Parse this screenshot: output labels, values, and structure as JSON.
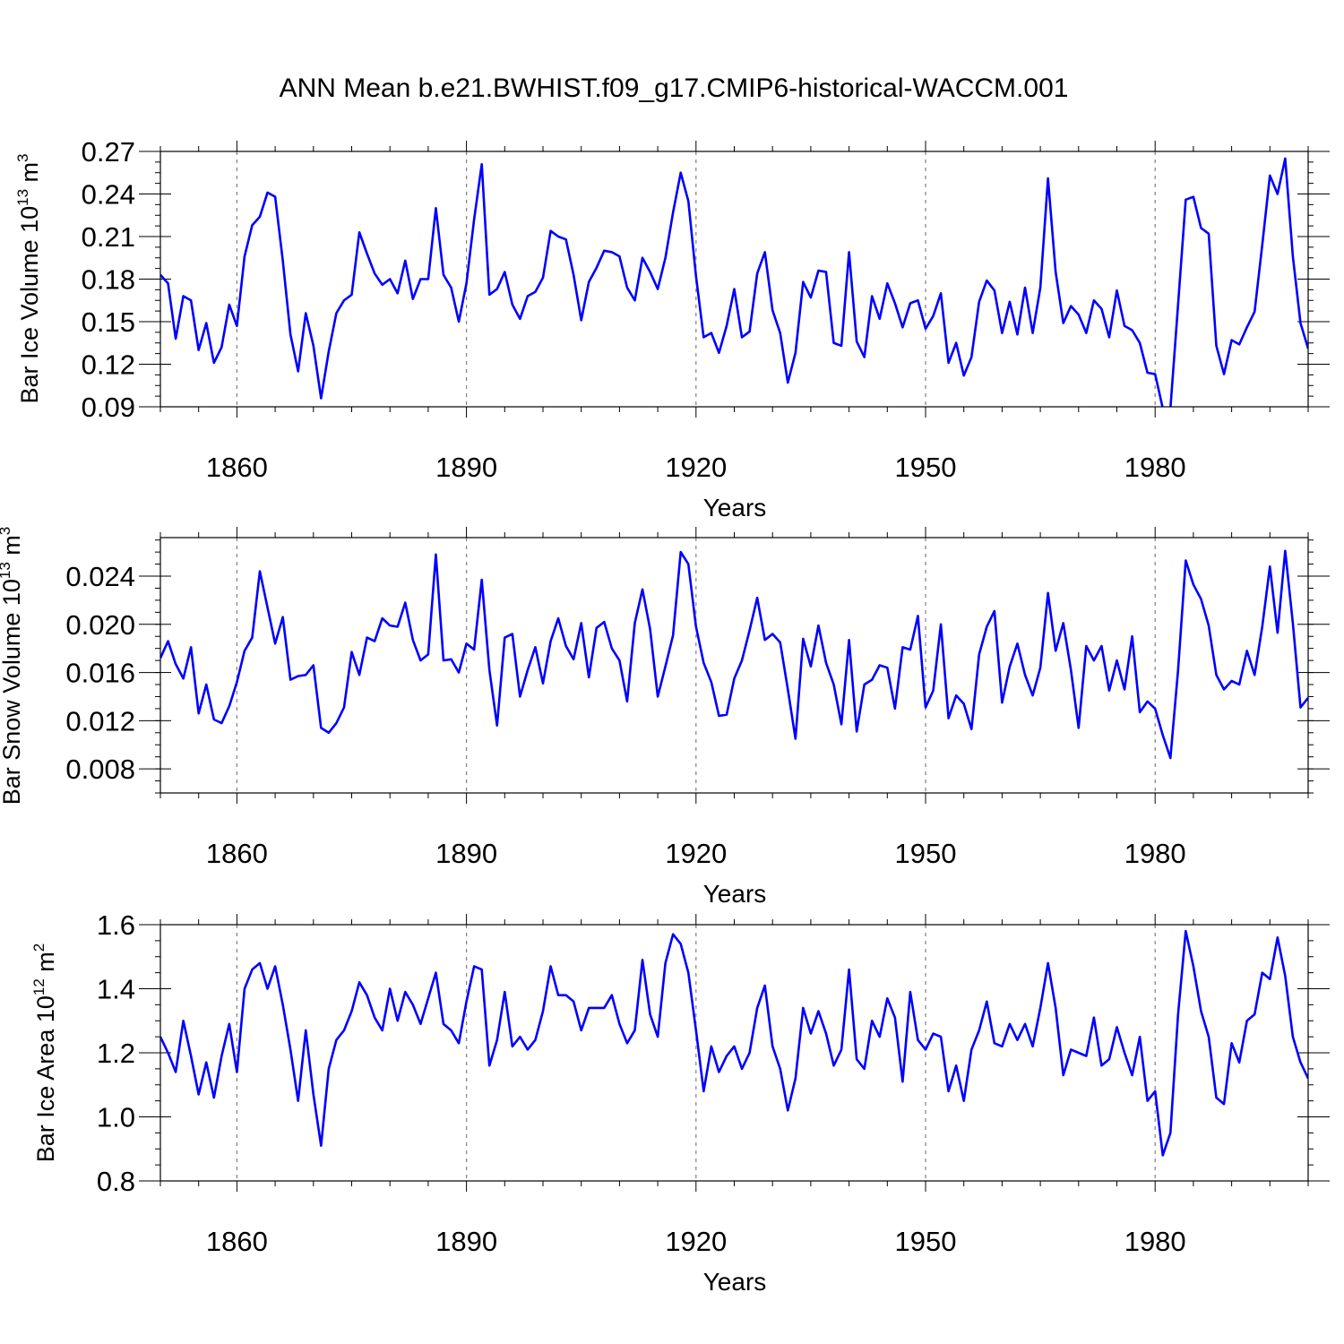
{
  "title": "ANN Mean b.e21.BWHIST.f09_g17.CMIP6-historical-WACCM.001",
  "colors": {
    "series": "#0000ff",
    "axis": "#000000",
    "reference_lines": "#7f7f7f"
  },
  "chart_data": [
    {
      "type": "line",
      "ylabel": "Bar Ice Volume",
      "yunit": {
        "base": "10",
        "exp": "13",
        "unit": "m",
        "unit_exp": "3"
      },
      "xlabel": "Years",
      "xlim": [
        1850,
        2000
      ],
      "ylim": [
        0.09,
        0.27
      ],
      "yticks": [
        "0.09",
        "0.12",
        "0.15",
        "0.18",
        "0.21",
        "0.24",
        "0.27"
      ],
      "xticks": [
        "1860",
        "1890",
        "1920",
        "1950",
        "1980"
      ],
      "reference_lines_x": [
        1860,
        1890,
        1920,
        1950,
        1980
      ],
      "series": [
        {
          "name": "Bar Ice Volume",
          "start_year": 1850,
          "values": [
            0.183,
            0.177,
            0.138,
            0.168,
            0.165,
            0.13,
            0.149,
            0.121,
            0.132,
            0.162,
            0.147,
            0.196,
            0.218,
            0.224,
            0.241,
            0.238,
            0.193,
            0.141,
            0.115,
            0.156,
            0.133,
            0.096,
            0.129,
            0.156,
            0.165,
            0.169,
            0.213,
            0.198,
            0.184,
            0.176,
            0.18,
            0.17,
            0.193,
            0.166,
            0.18,
            0.18,
            0.23,
            0.183,
            0.174,
            0.15,
            0.177,
            0.222,
            0.261,
            0.169,
            0.173,
            0.185,
            0.162,
            0.152,
            0.168,
            0.171,
            0.181,
            0.214,
            0.21,
            0.208,
            0.183,
            0.151,
            0.178,
            0.188,
            0.2,
            0.199,
            0.196,
            0.174,
            0.165,
            0.195,
            0.185,
            0.173,
            0.195,
            0.227,
            0.255,
            0.235,
            0.182,
            0.139,
            0.142,
            0.128,
            0.147,
            0.173,
            0.139,
            0.143,
            0.184,
            0.199,
            0.158,
            0.142,
            0.107,
            0.128,
            0.178,
            0.167,
            0.186,
            0.185,
            0.135,
            0.133,
            0.199,
            0.136,
            0.125,
            0.168,
            0.152,
            0.177,
            0.163,
            0.146,
            0.163,
            0.165,
            0.145,
            0.154,
            0.17,
            0.121,
            0.135,
            0.112,
            0.125,
            0.164,
            0.179,
            0.172,
            0.142,
            0.164,
            0.141,
            0.174,
            0.142,
            0.174,
            0.251,
            0.185,
            0.149,
            0.161,
            0.155,
            0.142,
            0.165,
            0.159,
            0.139,
            0.172,
            0.147,
            0.144,
            0.135,
            0.114,
            0.113,
            0.089,
            0.089,
            0.162,
            0.236,
            0.238,
            0.216,
            0.212,
            0.133,
            0.113,
            0.137,
            0.134,
            0.146,
            0.157,
            0.204,
            0.253,
            0.24,
            0.265,
            0.196,
            0.149,
            0.131
          ]
        }
      ]
    },
    {
      "type": "line",
      "ylabel": "Bar Snow Volume",
      "yunit": {
        "base": "10",
        "exp": "13",
        "unit": "m",
        "unit_exp": "3"
      },
      "xlabel": "Years",
      "xlim": [
        1850,
        2000
      ],
      "ylim": [
        0.006,
        0.0272
      ],
      "yticks": [
        "0.008",
        "0.012",
        "0.016",
        "0.020",
        "0.024"
      ],
      "xticks": [
        "1860",
        "1890",
        "1920",
        "1950",
        "1980"
      ],
      "reference_lines_x": [
        1860,
        1890,
        1920,
        1950,
        1980
      ],
      "series": [
        {
          "name": "Bar Snow Volume",
          "start_year": 1850,
          "values": [
            0.0172,
            0.0186,
            0.0167,
            0.0155,
            0.0181,
            0.0126,
            0.015,
            0.0121,
            0.0118,
            0.0132,
            0.0152,
            0.0178,
            0.0189,
            0.0244,
            0.0214,
            0.0184,
            0.0206,
            0.0154,
            0.0157,
            0.0158,
            0.0166,
            0.0114,
            0.011,
            0.0118,
            0.0131,
            0.0177,
            0.0158,
            0.0189,
            0.0186,
            0.0205,
            0.0199,
            0.0198,
            0.0218,
            0.0187,
            0.017,
            0.0175,
            0.0258,
            0.017,
            0.0171,
            0.016,
            0.0184,
            0.0179,
            0.0237,
            0.0162,
            0.0116,
            0.0189,
            0.0192,
            0.014,
            0.0162,
            0.0181,
            0.0151,
            0.0186,
            0.0205,
            0.0182,
            0.0171,
            0.0201,
            0.0156,
            0.0197,
            0.0202,
            0.018,
            0.017,
            0.0136,
            0.0201,
            0.0229,
            0.0196,
            0.014,
            0.0165,
            0.0191,
            0.026,
            0.025,
            0.0198,
            0.0168,
            0.0152,
            0.0124,
            0.0125,
            0.0155,
            0.017,
            0.0195,
            0.0222,
            0.0187,
            0.0192,
            0.0185,
            0.0146,
            0.0105,
            0.0188,
            0.0165,
            0.0199,
            0.0168,
            0.015,
            0.0117,
            0.0187,
            0.0111,
            0.015,
            0.0154,
            0.0166,
            0.0164,
            0.013,
            0.0181,
            0.0179,
            0.0207,
            0.0131,
            0.0145,
            0.02,
            0.0122,
            0.0141,
            0.0134,
            0.0113,
            0.0175,
            0.0198,
            0.0211,
            0.0135,
            0.0165,
            0.0184,
            0.0158,
            0.0141,
            0.0164,
            0.0226,
            0.0178,
            0.0201,
            0.0162,
            0.0114,
            0.0182,
            0.017,
            0.0182,
            0.0145,
            0.017,
            0.0146,
            0.019,
            0.0127,
            0.0136,
            0.013,
            0.0108,
            0.0089,
            0.0162,
            0.0253,
            0.0233,
            0.0221,
            0.0199,
            0.0158,
            0.0146,
            0.0153,
            0.015,
            0.0178,
            0.0158,
            0.0198,
            0.0248,
            0.0193,
            0.0261,
            0.0201,
            0.0131,
            0.0139
          ]
        }
      ]
    },
    {
      "type": "line",
      "ylabel": "Bar Ice Area",
      "yunit": {
        "base": "10",
        "exp": "12",
        "unit": "m",
        "unit_exp": "2"
      },
      "xlabel": "Years",
      "xlim": [
        1850,
        2000
      ],
      "ylim": [
        0.8,
        1.6
      ],
      "yticks": [
        "0.8",
        "1.0",
        "1.2",
        "1.4",
        "1.6"
      ],
      "xticks": [
        "1860",
        "1890",
        "1920",
        "1950",
        "1980"
      ],
      "reference_lines_x": [
        1860,
        1890,
        1920,
        1950,
        1980
      ],
      "series": [
        {
          "name": "Bar Ice Area",
          "start_year": 1850,
          "values": [
            1.25,
            1.2,
            1.14,
            1.3,
            1.19,
            1.07,
            1.17,
            1.06,
            1.19,
            1.29,
            1.14,
            1.4,
            1.46,
            1.48,
            1.4,
            1.47,
            1.35,
            1.21,
            1.05,
            1.27,
            1.07,
            0.91,
            1.15,
            1.24,
            1.27,
            1.33,
            1.42,
            1.38,
            1.31,
            1.27,
            1.4,
            1.3,
            1.39,
            1.35,
            1.29,
            1.37,
            1.45,
            1.29,
            1.27,
            1.23,
            1.36,
            1.47,
            1.46,
            1.16,
            1.24,
            1.39,
            1.22,
            1.25,
            1.21,
            1.24,
            1.33,
            1.47,
            1.38,
            1.38,
            1.36,
            1.27,
            1.34,
            1.34,
            1.34,
            1.38,
            1.29,
            1.23,
            1.27,
            1.49,
            1.32,
            1.25,
            1.48,
            1.57,
            1.54,
            1.45,
            1.27,
            1.08,
            1.22,
            1.14,
            1.19,
            1.22,
            1.15,
            1.2,
            1.34,
            1.41,
            1.22,
            1.15,
            1.02,
            1.12,
            1.34,
            1.26,
            1.33,
            1.26,
            1.16,
            1.21,
            1.46,
            1.18,
            1.15,
            1.3,
            1.25,
            1.37,
            1.31,
            1.11,
            1.39,
            1.24,
            1.21,
            1.26,
            1.25,
            1.08,
            1.16,
            1.05,
            1.21,
            1.27,
            1.36,
            1.23,
            1.22,
            1.29,
            1.24,
            1.29,
            1.22,
            1.34,
            1.48,
            1.34,
            1.13,
            1.21,
            1.2,
            1.19,
            1.31,
            1.16,
            1.18,
            1.28,
            1.2,
            1.13,
            1.25,
            1.05,
            1.08,
            0.88,
            0.95,
            1.32,
            1.58,
            1.47,
            1.33,
            1.25,
            1.06,
            1.04,
            1.23,
            1.17,
            1.3,
            1.32,
            1.45,
            1.43,
            1.56,
            1.44,
            1.25,
            1.17,
            1.12
          ]
        }
      ]
    }
  ]
}
